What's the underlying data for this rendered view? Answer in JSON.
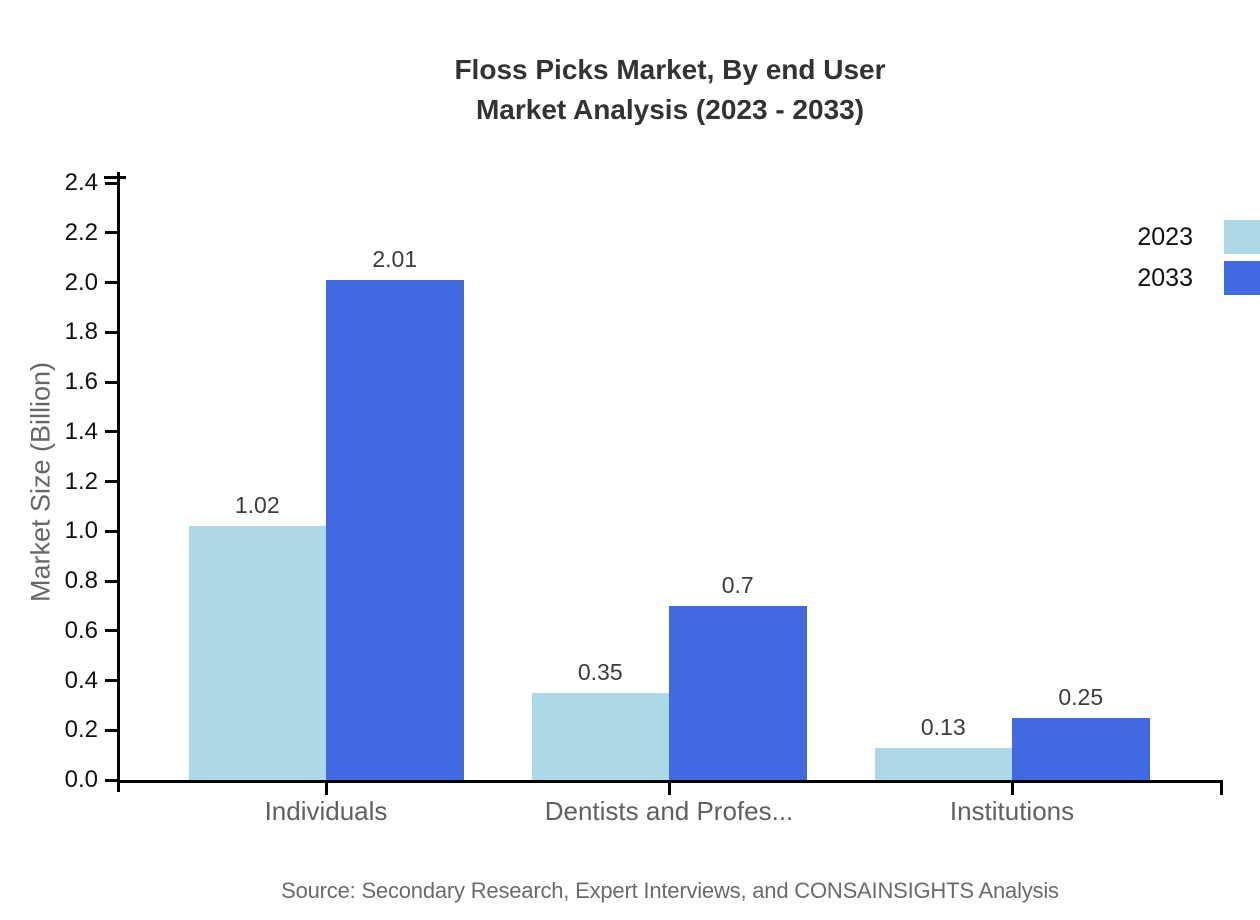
{
  "title": {
    "line1": "Floss Picks Market, By end User",
    "line2": "Market Analysis (2023 - 2033)"
  },
  "source": "Source: Secondary Research, Expert Interviews, and CONSAINSIGHTS Analysis",
  "legend": {
    "position": "right",
    "items": [
      {
        "label": "2023",
        "color": "#ADD8E6"
      },
      {
        "label": "2033",
        "color": "#4169E1"
      }
    ]
  },
  "chart_data": {
    "type": "bar",
    "title": "Floss Picks Market, By end User Market Analysis (2023 - 2033)",
    "categories": [
      "Individuals",
      "Dentists and Profes...",
      "Institutions"
    ],
    "series": [
      {
        "name": "2023",
        "color": "#ADD8E6",
        "values": [
          1.02,
          0.35,
          0.13
        ],
        "display": [
          "1.02",
          "0.35",
          "0.13"
        ]
      },
      {
        "name": "2033",
        "color": "#4169E1",
        "values": [
          2.01,
          0.7,
          0.25
        ],
        "display": [
          "2.01",
          "0.7",
          "0.25"
        ]
      }
    ],
    "xlabel": "",
    "ylabel": "Market Size (Billion)",
    "ylim": [
      0,
      2.4
    ],
    "ytick_step": 0.2,
    "yticks": [
      "0.0",
      "0.2",
      "0.4",
      "0.6",
      "0.8",
      "1.0",
      "1.2",
      "1.4",
      "1.6",
      "1.8",
      "2.0",
      "2.2",
      "2.4"
    ],
    "grid": false,
    "legend_position": "right",
    "colors": {
      "axis": "#000000",
      "tick_label": "#111111",
      "category_label": "#606060",
      "value_label": "#3d3d3d",
      "title_text": "#333333",
      "source_text": "#6b6b6b",
      "ylabel_text": "#666666"
    }
  }
}
